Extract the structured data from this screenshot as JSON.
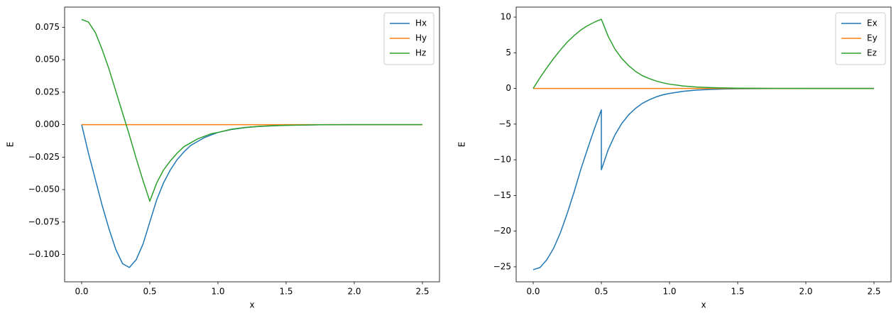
{
  "chart_data": [
    {
      "type": "line",
      "xlabel": "x",
      "ylabel": "E",
      "legend": "upper right",
      "x": [
        0,
        0.05,
        0.1,
        0.15,
        0.2,
        0.25,
        0.3,
        0.35,
        0.4,
        0.45,
        0.5,
        0.5,
        0.55,
        0.6,
        0.65,
        0.7,
        0.75,
        0.8,
        0.85,
        0.9,
        0.95,
        1.0,
        1.1,
        1.2,
        1.3,
        1.4,
        1.5,
        1.75,
        2.0,
        2.25,
        2.5
      ],
      "series": [
        {
          "name": "Hx",
          "color": "#1f77b4",
          "values": [
            0,
            -0.022,
            -0.042,
            -0.062,
            -0.08,
            -0.096,
            -0.107,
            -0.11,
            -0.104,
            -0.092,
            -0.075,
            -0.075,
            -0.058,
            -0.045,
            -0.035,
            -0.027,
            -0.021,
            -0.016,
            -0.013,
            -0.01,
            -0.008,
            -0.006,
            -0.0037,
            -0.0023,
            -0.0014,
            -0.0009,
            -0.0005,
            -0.0001,
            0,
            0,
            0
          ]
        },
        {
          "name": "Hy",
          "color": "#ff7f0e",
          "values": [
            0,
            0,
            0,
            0,
            0,
            0,
            0,
            0,
            0,
            0,
            0,
            0,
            0,
            0,
            0,
            0,
            0,
            0,
            0,
            0,
            0,
            0,
            0,
            0,
            0,
            0,
            0,
            0,
            0,
            0,
            0
          ]
        },
        {
          "name": "Hz",
          "color": "#2ca02c",
          "values": [
            0.081,
            0.079,
            0.071,
            0.058,
            0.043,
            0.026,
            0.009,
            -0.008,
            -0.026,
            -0.043,
            -0.059,
            -0.059,
            -0.045,
            -0.035,
            -0.028,
            -0.022,
            -0.017,
            -0.014,
            -0.011,
            -0.009,
            -0.007,
            -0.006,
            -0.0035,
            -0.0021,
            -0.0013,
            -0.0008,
            -0.0005,
            -0.0001,
            0,
            0,
            0
          ]
        }
      ],
      "xlim": [
        -0.125,
        2.625
      ],
      "xticks": [
        {
          "value": 0,
          "label": "0.0"
        },
        0.5,
        {
          "value": 1,
          "label": "1.0"
        },
        1.5,
        {
          "value": 2,
          "label": "2.0"
        },
        2.5
      ],
      "ylim": [
        -0.121,
        0.0905
      ],
      "yticks": [
        {
          "value": -0.1,
          "label": "−0.100"
        },
        {
          "value": -0.075,
          "label": "−0.075"
        },
        {
          "value": -0.05,
          "label": "−0.050"
        },
        {
          "value": -0.025,
          "label": "−0.025"
        },
        {
          "value": 0,
          "label": "0.000"
        },
        0.025,
        {
          "value": 0.05,
          "label": "0.050"
        },
        0.075
      ]
    },
    {
      "type": "line",
      "xlabel": "x",
      "ylabel": "E",
      "legend": "upper right",
      "x": [
        0,
        0.05,
        0.1,
        0.15,
        0.2,
        0.25,
        0.3,
        0.35,
        0.4,
        0.45,
        0.5,
        0.5,
        0.55,
        0.6,
        0.65,
        0.7,
        0.75,
        0.8,
        0.85,
        0.9,
        0.95,
        1.0,
        1.1,
        1.2,
        1.3,
        1.4,
        1.5,
        1.75,
        2.0,
        2.25,
        2.5
      ],
      "series": [
        {
          "name": "Ex",
          "color": "#1f77b4",
          "values": [
            -25.4,
            -25.1,
            -24.0,
            -22.4,
            -20.2,
            -17.5,
            -14.5,
            -11.3,
            -8.4,
            -5.6,
            -3.0,
            -11.4,
            -8.6,
            -6.5,
            -4.9,
            -3.7,
            -2.8,
            -2.1,
            -1.6,
            -1.2,
            -0.9,
            -0.7,
            -0.4,
            -0.23,
            -0.14,
            -0.08,
            -0.05,
            -0.01,
            0,
            0,
            0
          ]
        },
        {
          "name": "Ey",
          "color": "#ff7f0e",
          "values": [
            0,
            0,
            0,
            0,
            0,
            0,
            0,
            0,
            0,
            0,
            0,
            0,
            0,
            0,
            0,
            0,
            0,
            0,
            0,
            0,
            0,
            0,
            0,
            0,
            0,
            0,
            0,
            0,
            0,
            0,
            0
          ]
        },
        {
          "name": "Ez",
          "color": "#2ca02c",
          "values": [
            0,
            1.5,
            2.9,
            4.2,
            5.4,
            6.5,
            7.4,
            8.2,
            8.8,
            9.3,
            9.7,
            9.7,
            7.3,
            5.5,
            4.2,
            3.2,
            2.4,
            1.8,
            1.4,
            1.05,
            0.8,
            0.6,
            0.35,
            0.2,
            0.12,
            0.07,
            0.04,
            0.01,
            0,
            0,
            0
          ]
        }
      ],
      "xlim": [
        -0.125,
        2.625
      ],
      "xticks": [
        {
          "value": 0,
          "label": "0.0"
        },
        0.5,
        {
          "value": 1,
          "label": "1.0"
        },
        1.5,
        {
          "value": 2,
          "label": "2.0"
        },
        2.5
      ],
      "ylim": [
        -27.1,
        11.4
      ],
      "yticks": [
        {
          "value": -25,
          "label": "−25"
        },
        {
          "value": -20,
          "label": "−20"
        },
        {
          "value": -15,
          "label": "−15"
        },
        {
          "value": -10,
          "label": "−10"
        },
        {
          "value": -5,
          "label": "−5"
        },
        0,
        5,
        10
      ]
    }
  ]
}
